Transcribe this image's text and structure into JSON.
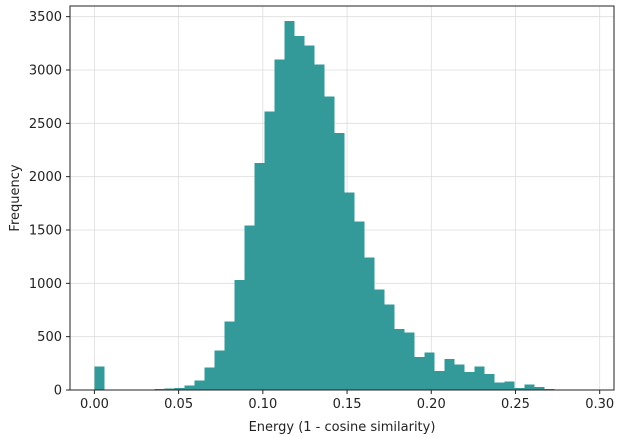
{
  "chart_data": {
    "type": "bar",
    "title": "",
    "xlabel": "Energy (1 - cosine similarity)",
    "ylabel": "Frequency",
    "xlim": [
      -0.0145,
      0.3085
    ],
    "ylim": [
      0,
      3600
    ],
    "xticks": [
      0.0,
      0.05,
      0.1,
      0.15,
      0.2,
      0.25,
      0.3
    ],
    "xtick_labels": [
      "0.00",
      "0.05",
      "0.10",
      "0.15",
      "0.20",
      "0.25",
      "0.30"
    ],
    "yticks": [
      0,
      500,
      1000,
      1500,
      2000,
      2500,
      3000,
      3500
    ],
    "ytick_labels": [
      "0",
      "500",
      "1000",
      "1500",
      "2000",
      "2500",
      "3000",
      "3500"
    ],
    "grid": true,
    "bin_start": 0.0,
    "bin_width": 0.00594,
    "values": [
      220,
      0,
      0,
      0,
      0,
      5,
      10,
      15,
      20,
      40,
      90,
      210,
      370,
      640,
      1030,
      1540,
      2130,
      2610,
      3100,
      3460,
      3320,
      3230,
      3050,
      2750,
      2410,
      1850,
      1580,
      1240,
      940,
      800,
      570,
      540,
      310,
      350,
      180,
      290,
      240,
      170,
      220,
      150,
      70,
      80,
      20,
      50,
      30,
      10,
      5,
      3,
      0,
      3
    ],
    "color": "#339a99"
  }
}
